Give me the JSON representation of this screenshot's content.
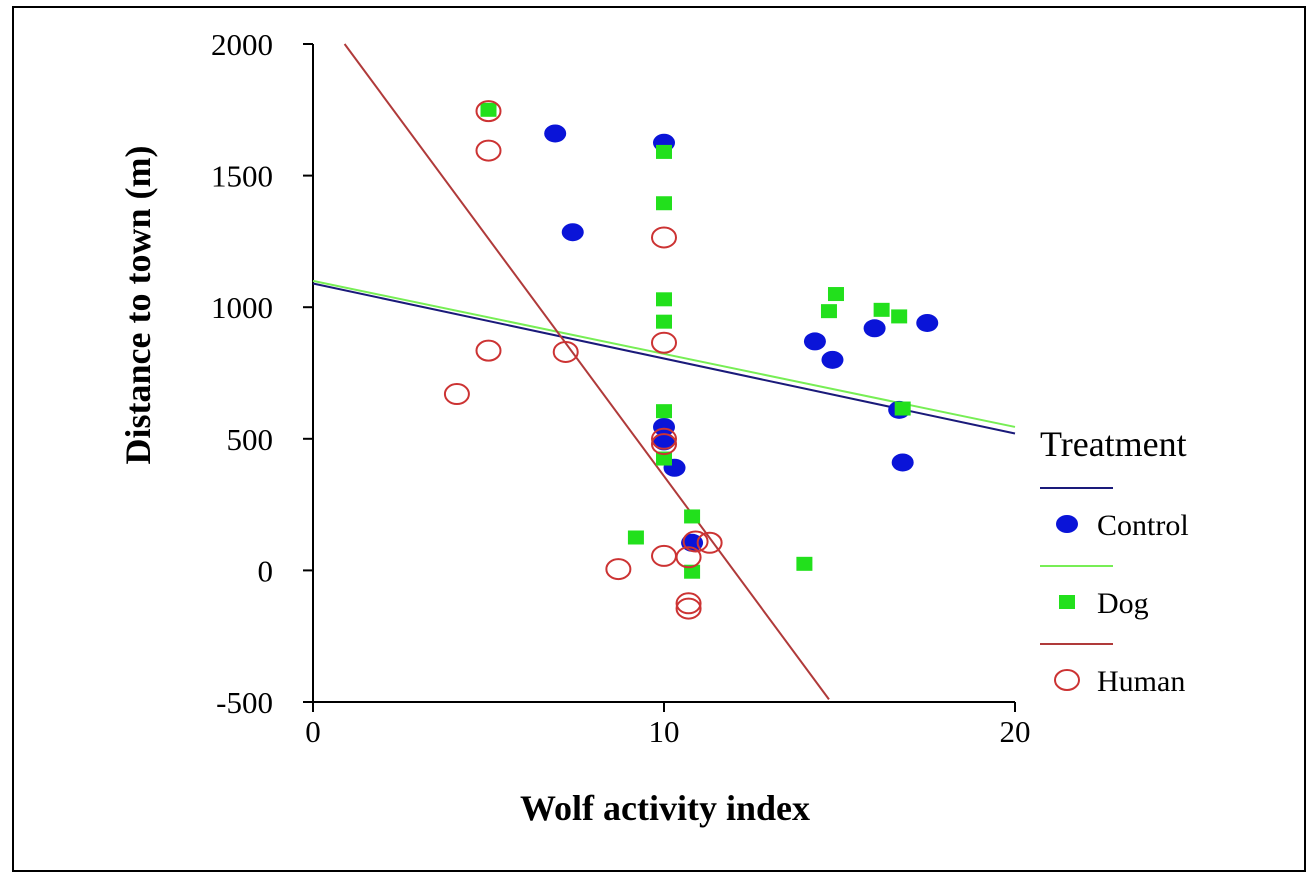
{
  "chart_data": {
    "type": "scatter",
    "title": "",
    "xlabel": "Wolf  activity index",
    "ylabel": "Distance to town (m)",
    "xlim": [
      0,
      20
    ],
    "ylim": [
      -500,
      2000
    ],
    "xticks": [
      0,
      10,
      20
    ],
    "yticks": [
      -500,
      0,
      500,
      1000,
      1500,
      2000
    ],
    "grid": false,
    "legend": {
      "title": "Treatment",
      "placement": "right"
    },
    "series": [
      {
        "name": "Control",
        "marker": "filled-circle",
        "color": "#0a14d8",
        "points": [
          [
            6.9,
            1660
          ],
          [
            7.4,
            1285
          ],
          [
            10.0,
            1625
          ],
          [
            10.0,
            545
          ],
          [
            10.0,
            490
          ],
          [
            10.3,
            390
          ],
          [
            10.8,
            105
          ],
          [
            14.3,
            870
          ],
          [
            14.8,
            800
          ],
          [
            16.0,
            920
          ],
          [
            17.5,
            940
          ],
          [
            16.7,
            610
          ],
          [
            16.8,
            410
          ]
        ],
        "fit": {
          "x": [
            0,
            20
          ],
          "y": [
            1090,
            520
          ],
          "color": "#1a1a7a"
        }
      },
      {
        "name": "Dog",
        "marker": "filled-square",
        "color": "#22e01c",
        "points": [
          [
            5.0,
            1750
          ],
          [
            10.0,
            1590
          ],
          [
            10.0,
            1395
          ],
          [
            10.0,
            1030
          ],
          [
            10.0,
            945
          ],
          [
            10.0,
            605
          ],
          [
            10.0,
            425
          ],
          [
            10.8,
            205
          ],
          [
            9.2,
            125
          ],
          [
            10.8,
            -5
          ],
          [
            14.0,
            25
          ],
          [
            14.7,
            985
          ],
          [
            14.9,
            1050
          ],
          [
            16.2,
            990
          ],
          [
            16.7,
            965
          ],
          [
            16.8,
            615
          ]
        ],
        "fit": {
          "x": [
            0,
            20
          ],
          "y": [
            1100,
            545
          ],
          "color": "#77ee55"
        }
      },
      {
        "name": "Human",
        "marker": "open-circle",
        "color": "#cc3333",
        "points": [
          [
            5.0,
            1745
          ],
          [
            5.0,
            1595
          ],
          [
            10.0,
            1265
          ],
          [
            10.0,
            865
          ],
          [
            5.0,
            835
          ],
          [
            7.2,
            830
          ],
          [
            4.1,
            670
          ],
          [
            10.0,
            500
          ],
          [
            10.0,
            480
          ],
          [
            8.7,
            5
          ],
          [
            10.0,
            55
          ],
          [
            10.7,
            50
          ],
          [
            11.3,
            105
          ],
          [
            10.9,
            110
          ],
          [
            10.7,
            -125
          ],
          [
            10.7,
            -145
          ]
        ],
        "fit": {
          "x": [
            0.9,
            14.7
          ],
          "y": [
            2000,
            -490
          ],
          "color": "#b03a3a"
        }
      }
    ]
  }
}
